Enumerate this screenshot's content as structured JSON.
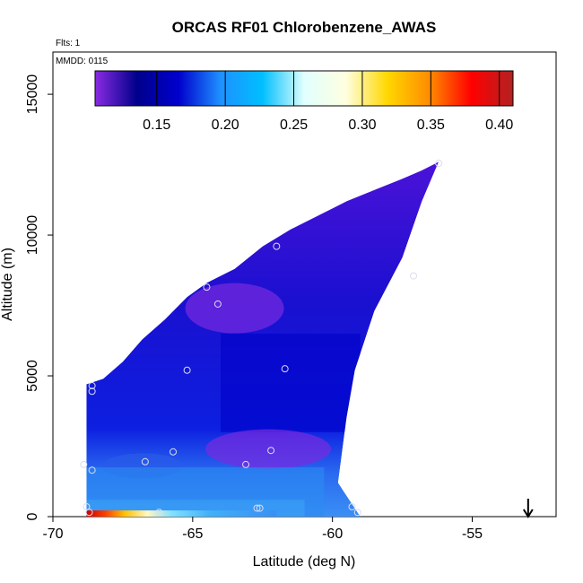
{
  "chart_data": {
    "type": "heatmap",
    "title": "ORCAS RF01 Chlorobenzene_AWAS",
    "subtitle_flts": "Flts: 1",
    "subtitle_mmdd": "MMDD: 0115",
    "xlabel": "Latitude (deg N)",
    "ylabel": "Altitude (m)",
    "xlim": [
      -70,
      -52
    ],
    "ylim": [
      0,
      16500
    ],
    "x_ticks": [
      -70,
      -65,
      -60,
      -55
    ],
    "x_tick_labels": [
      "-70",
      "-65",
      "-60",
      "-55"
    ],
    "y_ticks": [
      0,
      5000,
      10000,
      15000
    ],
    "y_tick_labels": [
      "0",
      "5000",
      "10000",
      "15000"
    ],
    "colorbar": {
      "range": [
        0.105,
        0.41
      ],
      "ticks": [
        0.15,
        0.2,
        0.25,
        0.3,
        0.35,
        0.4
      ],
      "tick_labels": [
        "0.15",
        "0.20",
        "0.25",
        "0.30",
        "0.35",
        "0.40"
      ],
      "colors": [
        "#8a2be2",
        "#00008b",
        "#0000cd",
        "#1e90ff",
        "#00bfff",
        "#e0ffff",
        "#ffffe0",
        "#ffd700",
        "#ff8c00",
        "#ff0000",
        "#b22222"
      ]
    },
    "field_envelope": {
      "upper_boundary": [
        {
          "lat": -68.8,
          "alt": 4700
        },
        {
          "lat": -68.2,
          "alt": 4900
        },
        {
          "lat": -67.5,
          "alt": 5500
        },
        {
          "lat": -66.8,
          "alt": 6300
        },
        {
          "lat": -66.0,
          "alt": 7000
        },
        {
          "lat": -65.2,
          "alt": 7800
        },
        {
          "lat": -64.5,
          "alt": 8300
        },
        {
          "lat": -63.5,
          "alt": 8800
        },
        {
          "lat": -62.5,
          "alt": 9600
        },
        {
          "lat": -61.5,
          "alt": 10200
        },
        {
          "lat": -60.5,
          "alt": 10700
        },
        {
          "lat": -59.5,
          "alt": 11200
        },
        {
          "lat": -58.5,
          "alt": 11600
        },
        {
          "lat": -57.5,
          "alt": 12000
        },
        {
          "lat": -56.8,
          "alt": 12300
        },
        {
          "lat": -56.2,
          "alt": 12600
        }
      ],
      "lower_right_boundary": [
        {
          "lat": -56.2,
          "alt": 12600
        },
        {
          "lat": -56.8,
          "alt": 11200
        },
        {
          "lat": -57.5,
          "alt": 9200
        },
        {
          "lat": -58.5,
          "alt": 7300
        },
        {
          "lat": -59.2,
          "alt": 5200
        },
        {
          "lat": -59.5,
          "alt": 3500
        },
        {
          "lat": -59.8,
          "alt": 1200
        },
        {
          "lat": -59.0,
          "alt": 0
        }
      ]
    },
    "field_features": [
      {
        "lat": -63.5,
        "alt": 7500,
        "value": 0.12
      },
      {
        "lat": -62.5,
        "alt": 2300,
        "value": 0.11
      },
      {
        "lat": -67.0,
        "alt": 1000,
        "value": 0.19
      },
      {
        "lat": -67.0,
        "alt": 250,
        "value": 0.22
      },
      {
        "lat": -68.0,
        "alt": 200,
        "value": 0.38
      }
    ],
    "points": [
      {
        "lat": -68.6,
        "alt": 4650
      },
      {
        "lat": -68.6,
        "alt": 4450
      },
      {
        "lat": -64.5,
        "alt": 8150
      },
      {
        "lat": -64.1,
        "alt": 7550
      },
      {
        "lat": -62.0,
        "alt": 9600
      },
      {
        "lat": -57.1,
        "alt": 8550
      },
      {
        "lat": -65.2,
        "alt": 5200
      },
      {
        "lat": -61.7,
        "alt": 5250
      },
      {
        "lat": -68.9,
        "alt": 1850
      },
      {
        "lat": -68.6,
        "alt": 1650
      },
      {
        "lat": -66.7,
        "alt": 1950
      },
      {
        "lat": -65.7,
        "alt": 2300
      },
      {
        "lat": -62.2,
        "alt": 2350
      },
      {
        "lat": -63.1,
        "alt": 1850
      },
      {
        "lat": -68.8,
        "alt": 350
      },
      {
        "lat": -68.7,
        "alt": 150
      },
      {
        "lat": -66.2,
        "alt": 150
      },
      {
        "lat": -62.6,
        "alt": 300
      },
      {
        "lat": -62.7,
        "alt": 300
      },
      {
        "lat": -59.3,
        "alt": 350
      },
      {
        "lat": -59.1,
        "alt": 150
      },
      {
        "lat": -56.2,
        "alt": 12550
      }
    ],
    "arrow_marker": {
      "lat": -53.0,
      "direction": "down"
    }
  }
}
